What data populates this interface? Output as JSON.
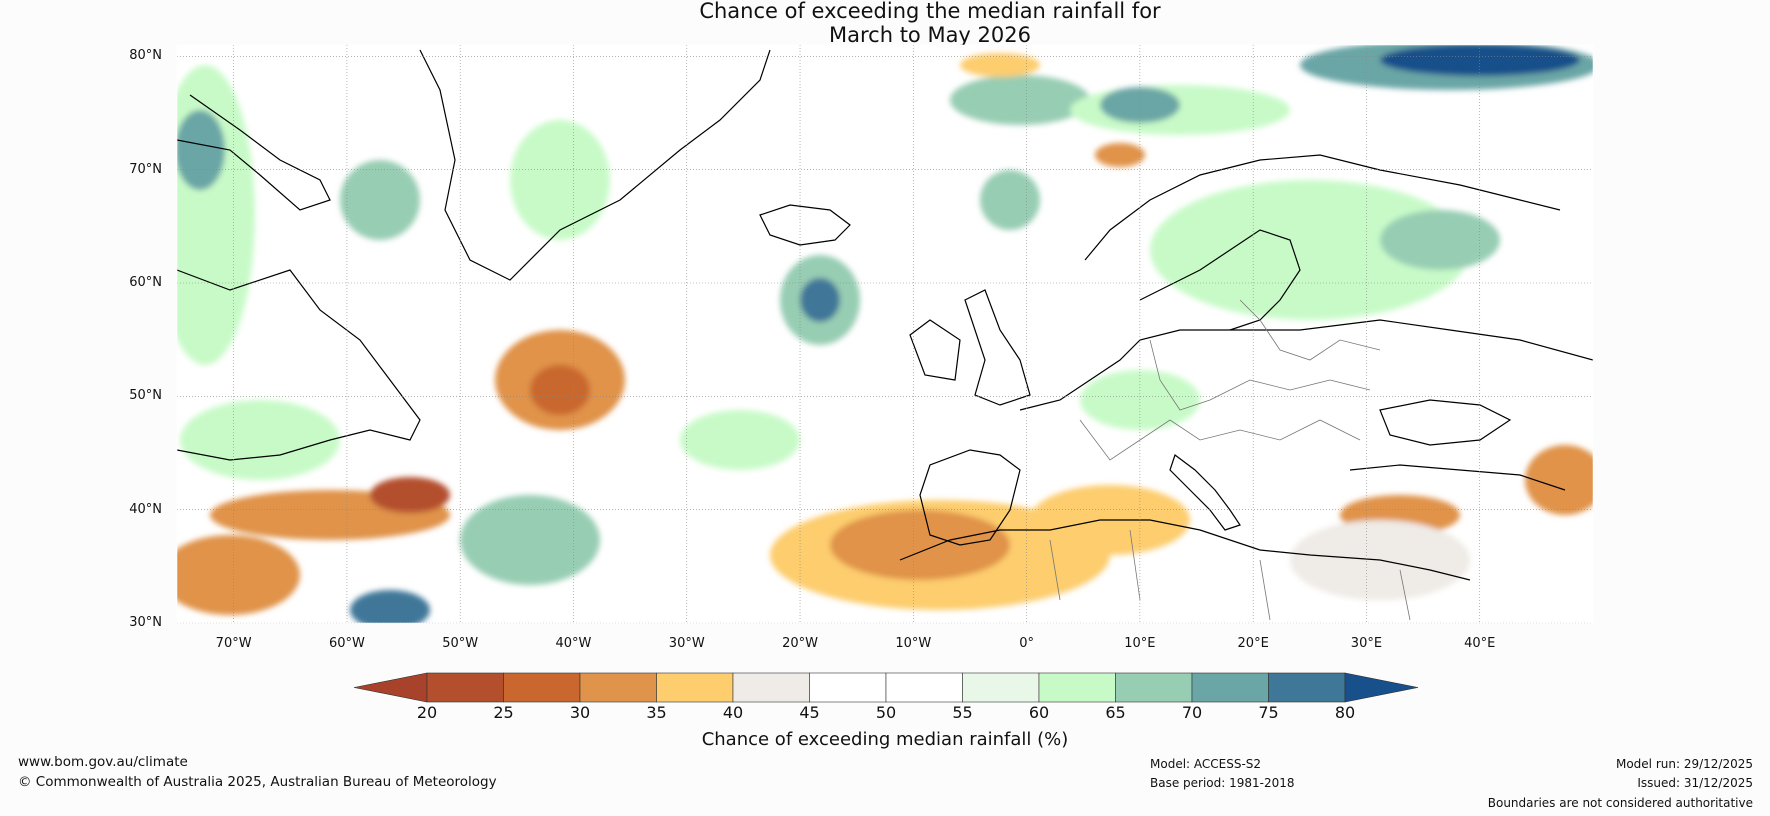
{
  "title": {
    "line1": "Chance of exceeding the median rainfall for",
    "line2": "March to May 2026"
  },
  "map": {
    "lat_labels": [
      "80°N",
      "70°N",
      "60°N",
      "50°N",
      "40°N",
      "30°N"
    ],
    "lon_labels": [
      "70°W",
      "60°W",
      "50°W",
      "40°W",
      "30°W",
      "20°W",
      "10°W",
      "0°",
      "10°E",
      "20°E",
      "30°E",
      "40°E"
    ],
    "lon_range": [
      -75,
      50
    ],
    "lat_range": [
      30,
      81
    ]
  },
  "colorbar": {
    "ticks": [
      "20",
      "25",
      "30",
      "35",
      "40",
      "45",
      "50",
      "55",
      "60",
      "65",
      "70",
      "75",
      "80"
    ],
    "colors": [
      "#a9422a",
      "#b44f2e",
      "#c9672f",
      "#e0934a",
      "#fdcd6e",
      "#efebe6",
      "#ffffff",
      "#ffffff",
      "#e9f7e9",
      "#c8fac8",
      "#97cdb3",
      "#6aa6a6",
      "#3f7799",
      "#17508a"
    ],
    "title": "Chance of exceeding median rainfall (%)"
  },
  "footer": {
    "url": "www.bom.gov.au/climate",
    "copyright": "© Commonwealth of Australia 2025, Australian Bureau of Meteorology",
    "model": "Model: ACCESS-S2",
    "base_period": "Base period: 1981-2018",
    "model_run": "Model run: 29/12/2025",
    "issued": "Issued: 31/12/2025",
    "disclaimer": "Boundaries are not considered authoritative"
  }
}
